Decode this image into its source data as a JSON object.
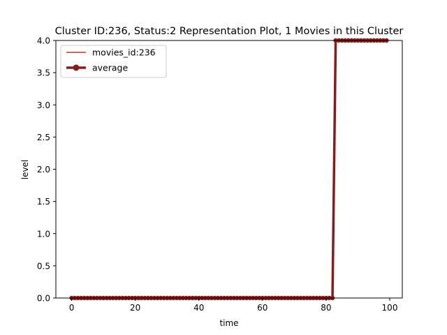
{
  "chart_data": {
    "type": "line",
    "title": "Cluster ID:236, Status:2 Representation Plot, 1 Movies in this Cluster",
    "xlabel": "time",
    "ylabel": "level",
    "xlim": [
      -4.95,
      103.95
    ],
    "ylim": [
      0,
      4
    ],
    "x_ticks": [
      0,
      20,
      40,
      60,
      80,
      100
    ],
    "x_tick_labels": [
      "0",
      "20",
      "40",
      "60",
      "80",
      "100"
    ],
    "y_ticks": [
      0,
      0.5,
      1,
      1.5,
      2,
      2.5,
      3,
      3.5,
      4
    ],
    "y_tick_labels": [
      "0.0",
      "0.5",
      "1.0",
      "1.5",
      "2.0",
      "2.5",
      "3.0",
      "3.5",
      "4.0"
    ],
    "grid": false,
    "legend_position": "upper-left",
    "x": [
      0,
      1,
      2,
      3,
      4,
      5,
      6,
      7,
      8,
      9,
      10,
      11,
      12,
      13,
      14,
      15,
      16,
      17,
      18,
      19,
      20,
      21,
      22,
      23,
      24,
      25,
      26,
      27,
      28,
      29,
      30,
      31,
      32,
      33,
      34,
      35,
      36,
      37,
      38,
      39,
      40,
      41,
      42,
      43,
      44,
      45,
      46,
      47,
      48,
      49,
      50,
      51,
      52,
      53,
      54,
      55,
      56,
      57,
      58,
      59,
      60,
      61,
      62,
      63,
      64,
      65,
      66,
      67,
      68,
      69,
      70,
      71,
      72,
      73,
      74,
      75,
      76,
      77,
      78,
      79,
      80,
      81,
      82,
      83,
      84,
      85,
      86,
      87,
      88,
      89,
      90,
      91,
      92,
      93,
      94,
      95,
      96,
      97,
      98,
      99
    ],
    "series": [
      {
        "name": "movies_id:236",
        "color": "#c0392b",
        "style": "thin-line",
        "values": [
          0,
          0,
          0,
          0,
          0,
          0,
          0,
          0,
          0,
          0,
          0,
          0,
          0,
          0,
          0,
          0,
          0,
          0,
          0,
          0,
          0,
          0,
          0,
          0,
          0,
          0,
          0,
          0,
          0,
          0,
          0,
          0,
          0,
          0,
          0,
          0,
          0,
          0,
          0,
          0,
          0,
          0,
          0,
          0,
          0,
          0,
          0,
          0,
          0,
          0,
          0,
          0,
          0,
          0,
          0,
          0,
          0,
          0,
          0,
          0,
          0,
          0,
          0,
          0,
          0,
          0,
          0,
          0,
          0,
          0,
          0,
          0,
          0,
          0,
          0,
          0,
          0,
          0,
          0,
          0,
          0,
          0,
          0,
          4,
          4,
          4,
          4,
          4,
          4,
          4,
          4,
          4,
          4,
          4,
          4,
          4,
          4,
          4,
          4,
          4
        ]
      },
      {
        "name": "average",
        "color": "#8b1a1a",
        "style": "thick-line-markers",
        "values": [
          0,
          0,
          0,
          0,
          0,
          0,
          0,
          0,
          0,
          0,
          0,
          0,
          0,
          0,
          0,
          0,
          0,
          0,
          0,
          0,
          0,
          0,
          0,
          0,
          0,
          0,
          0,
          0,
          0,
          0,
          0,
          0,
          0,
          0,
          0,
          0,
          0,
          0,
          0,
          0,
          0,
          0,
          0,
          0,
          0,
          0,
          0,
          0,
          0,
          0,
          0,
          0,
          0,
          0,
          0,
          0,
          0,
          0,
          0,
          0,
          0,
          0,
          0,
          0,
          0,
          0,
          0,
          0,
          0,
          0,
          0,
          0,
          0,
          0,
          0,
          0,
          0,
          0,
          0,
          0,
          0,
          0,
          0,
          4,
          4,
          4,
          4,
          4,
          4,
          4,
          4,
          4,
          4,
          4,
          4,
          4,
          4,
          4,
          4,
          4
        ]
      }
    ]
  }
}
